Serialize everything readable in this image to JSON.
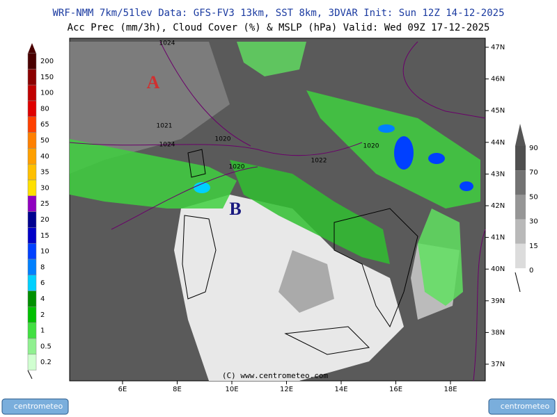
{
  "header": {
    "line1": "WRF-NMM 7km/51lev  Data: GFS-FV3 13km, SST 8km, 3DVAR  Init: Sun 12Z 14-12-2025",
    "line2": "Acc Prec (mm/3h), Cloud Cover (%) & MSLP (hPa)  Valid: Wed 09Z 17-12-2025"
  },
  "precip_scale": {
    "labels": [
      200,
      150,
      100,
      80,
      65,
      50,
      40,
      35,
      30,
      25,
      20,
      15,
      10,
      8,
      6,
      4,
      2,
      1,
      0.5,
      0.2
    ]
  },
  "cloud_scale": {
    "labels": [
      90,
      70,
      50,
      30,
      15,
      0
    ]
  },
  "latitudes": [
    "47N",
    "46N",
    "45N",
    "44N",
    "43N",
    "42N",
    "41N",
    "40N",
    "39N",
    "38N",
    "37N"
  ],
  "longitudes": [
    "6E",
    "8E",
    "10E",
    "12E",
    "14E",
    "16E",
    "18E"
  ],
  "isobars": [
    "1024",
    "1021",
    "1024",
    "1020",
    "1022",
    "1020",
    "1020"
  ],
  "pressure_centers": [
    "A",
    "B"
  ],
  "copyright": "(C) www.centrometeo.com",
  "logos": [
    "centrometeo",
    "centrometeo"
  ]
}
